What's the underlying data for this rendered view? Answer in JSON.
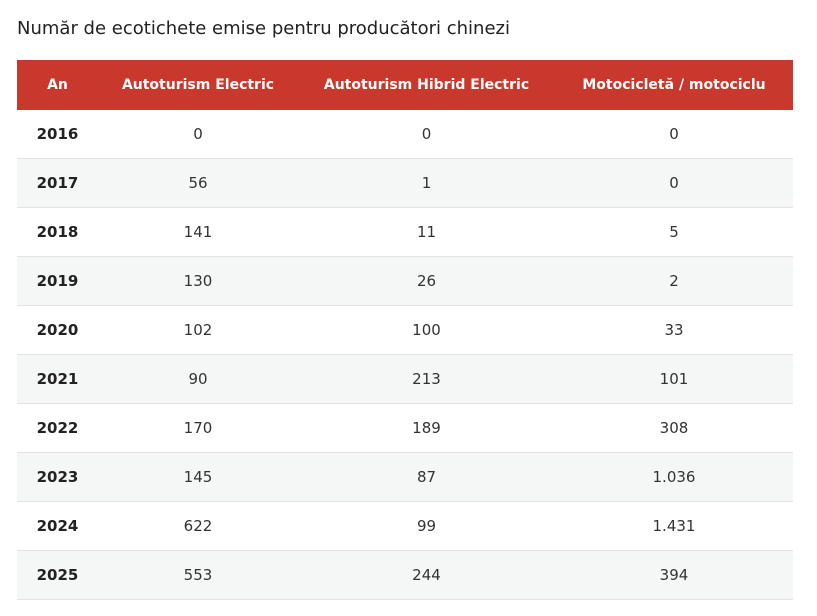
{
  "title": "Număr de ecotichete emise pentru producători chinezi",
  "table": {
    "header": [
      "An",
      "Autoturism Electric",
      "Autoturism Hibrid Electric",
      "Motocicletă / motociclu"
    ],
    "rows": [
      [
        "2016",
        "0",
        "0",
        "0"
      ],
      [
        "2017",
        "56",
        "1",
        "0"
      ],
      [
        "2018",
        "141",
        "11",
        "5"
      ],
      [
        "2019",
        "130",
        "26",
        "2"
      ],
      [
        "2020",
        "102",
        "100",
        "33"
      ],
      [
        "2021",
        "90",
        "213",
        "101"
      ],
      [
        "2022",
        "170",
        "189",
        "308"
      ],
      [
        "2023",
        "145",
        "87",
        "1.036"
      ],
      [
        "2024",
        "622",
        "99",
        "1.431"
      ],
      [
        "2025",
        "553",
        "244",
        "394"
      ]
    ]
  }
}
